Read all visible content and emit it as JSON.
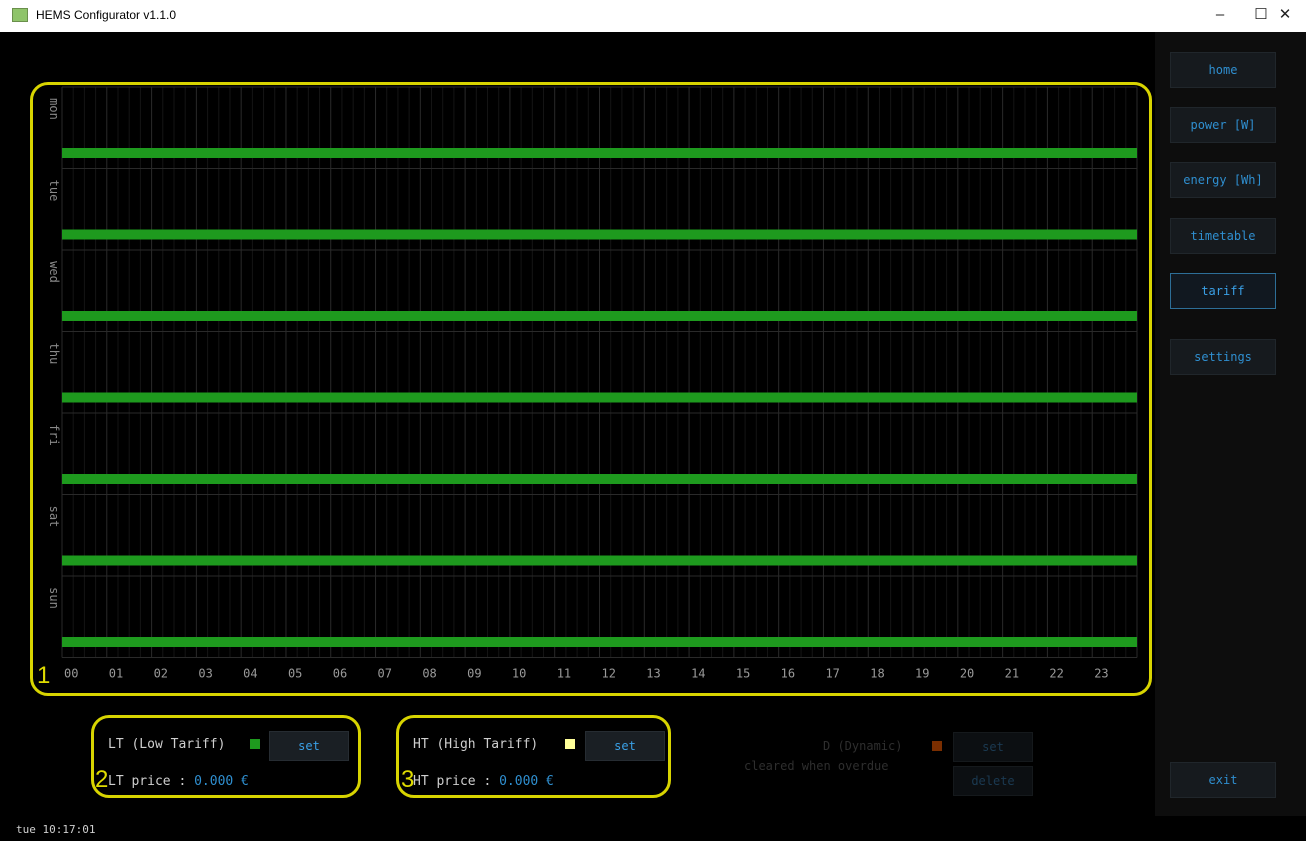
{
  "window": {
    "title": "HEMS Configurator v1.1.0",
    "minimize": "–",
    "maximize": "☐",
    "close": "✕"
  },
  "sidebar": {
    "items": [
      {
        "label": "home",
        "active": false
      },
      {
        "label": "power [W]",
        "active": false
      },
      {
        "label": "energy [Wh]",
        "active": false
      },
      {
        "label": "timetable",
        "active": false
      },
      {
        "label": "tariff",
        "active": true
      },
      {
        "label": "settings",
        "active": false
      }
    ],
    "exit_label": "exit"
  },
  "chart_data": {
    "type": "bar",
    "days": [
      "mon",
      "tue",
      "wed",
      "thu",
      "fri",
      "sat",
      "sun"
    ],
    "hours": [
      "00",
      "01",
      "02",
      "03",
      "04",
      "05",
      "06",
      "07",
      "08",
      "09",
      "10",
      "11",
      "12",
      "13",
      "14",
      "15",
      "16",
      "17",
      "18",
      "19",
      "20",
      "21",
      "22",
      "23"
    ],
    "series": [
      {
        "day": "mon",
        "tariff": "LT",
        "start_hour": 0,
        "end_hour": 24
      },
      {
        "day": "tue",
        "tariff": "LT",
        "start_hour": 0,
        "end_hour": 24
      },
      {
        "day": "wed",
        "tariff": "LT",
        "start_hour": 0,
        "end_hour": 24
      },
      {
        "day": "thu",
        "tariff": "LT",
        "start_hour": 0,
        "end_hour": 24
      },
      {
        "day": "fri",
        "tariff": "LT",
        "start_hour": 0,
        "end_hour": 24
      },
      {
        "day": "sat",
        "tariff": "LT",
        "start_hour": 0,
        "end_hour": 24
      },
      {
        "day": "sun",
        "tariff": "LT",
        "start_hour": 0,
        "end_hour": 24
      }
    ],
    "colors": {
      "LT": "#1e9a1e",
      "HT": "#ffff99",
      "D": "#7a2e00"
    }
  },
  "annotations": [
    "1",
    "2",
    "3"
  ],
  "tariffs": {
    "lt": {
      "label": "LT (Low Tariff)",
      "set_label": "set",
      "price_prefix": "LT price : ",
      "price": "0.000 €",
      "color": "#1e9a1e"
    },
    "ht": {
      "label": "HT (High Tariff)",
      "set_label": "set",
      "price_prefix": "HT price : ",
      "price": "0.000 €",
      "color": "#ffff99"
    },
    "d": {
      "label": "D (Dynamic)",
      "note": "cleared when overdue",
      "set_label": "set",
      "delete_label": "delete",
      "color": "#7a2e00"
    }
  },
  "status": {
    "text": "tue 10:17:01"
  },
  "theme": {
    "highlight": "#d8d400",
    "accent": "#2f8fd0"
  }
}
